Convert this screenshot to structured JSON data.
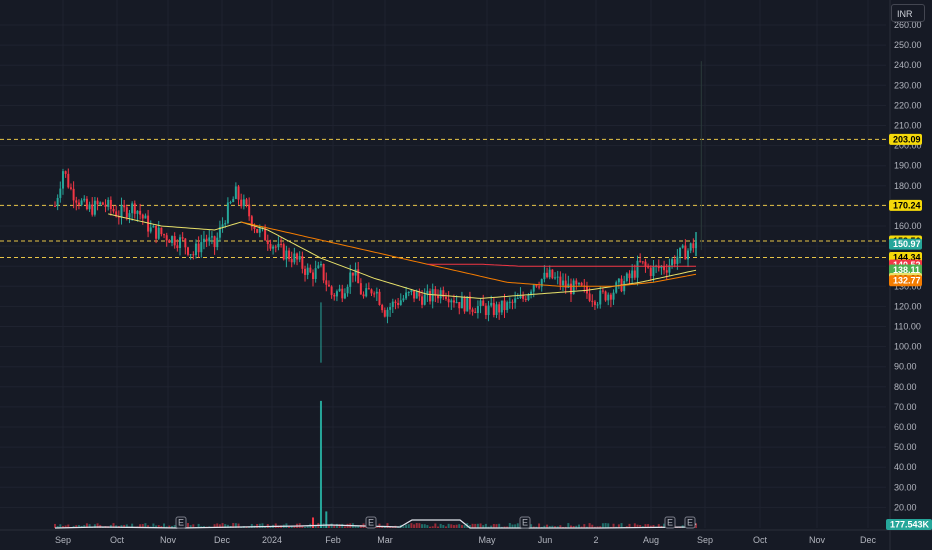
{
  "currency_label": "INR",
  "chart_data": {
    "type": "candlestick",
    "y_axis": {
      "ticks": [
        "260.00",
        "250.00",
        "240.00",
        "230.00",
        "220.00",
        "210.00",
        "200.00",
        "190.00",
        "180.00",
        "170.00",
        "160.00",
        "150.00",
        "140.00",
        "130.00",
        "120.00",
        "110.00",
        "100.00",
        "90.00",
        "80.00",
        "70.00",
        "60.00",
        "50.00",
        "40.00",
        "30.00",
        "20.00"
      ],
      "range": [
        10,
        265
      ]
    },
    "x_axis": {
      "labels": [
        "Sep",
        "Oct",
        "Nov",
        "Dec",
        "2024",
        "Feb",
        "Mar",
        "May",
        "Jun",
        "2",
        "Aug",
        "Sep",
        "Oct",
        "Nov",
        "Dec"
      ]
    },
    "horizontal_levels": [
      203.09,
      170.24,
      152.56,
      144.34
    ],
    "price_tags": [
      {
        "label": "203.09",
        "value": 203.09,
        "bg": "#f5d90a",
        "fg": "#000000"
      },
      {
        "label": "170.24",
        "value": 170.24,
        "bg": "#f5d90a",
        "fg": "#000000"
      },
      {
        "label": "152.56",
        "value": 152.56,
        "bg": "#f5d90a",
        "fg": "#000000"
      },
      {
        "label": "150.97",
        "value": 150.97,
        "bg": "#26a69a",
        "fg": "#ffffff"
      },
      {
        "label": "144.34",
        "value": 144.34,
        "bg": "#f5d90a",
        "fg": "#000000"
      },
      {
        "label": "140.52",
        "value": 140.52,
        "bg": "#f23645",
        "fg": "#ffffff"
      },
      {
        "label": "138.11",
        "value": 138.11,
        "bg": "#4caf50",
        "fg": "#ffffff"
      },
      {
        "label": "133.89",
        "value": 133.89,
        "bg": "#e9e26a",
        "fg": "#000000"
      },
      {
        "label": "132.77",
        "value": 132.77,
        "bg": "#f57c00",
        "fg": "#ffffff"
      }
    ],
    "volume_tag": {
      "label": "177.543K",
      "bg": "#26a69a",
      "fg": "#ffffff"
    },
    "earnings_markers": [
      "E",
      "E",
      "E",
      "E",
      "E"
    ],
    "price_keyframes": [
      [
        0,
        170
      ],
      [
        3,
        188
      ],
      [
        6,
        178
      ],
      [
        12,
        168
      ],
      [
        18,
        171
      ],
      [
        24,
        166
      ],
      [
        30,
        170
      ],
      [
        36,
        158
      ],
      [
        42,
        155
      ],
      [
        48,
        152
      ],
      [
        52,
        146
      ],
      [
        56,
        154
      ],
      [
        60,
        150
      ],
      [
        64,
        165
      ],
      [
        68,
        176
      ],
      [
        72,
        168
      ],
      [
        76,
        158
      ],
      [
        80,
        154
      ],
      [
        84,
        148
      ],
      [
        90,
        144
      ],
      [
        96,
        136
      ],
      [
        100,
        138
      ],
      [
        104,
        126
      ],
      [
        108,
        128
      ],
      [
        112,
        138
      ],
      [
        116,
        124
      ],
      [
        120,
        130
      ],
      [
        124,
        118
      ],
      [
        128,
        122
      ],
      [
        134,
        126
      ],
      [
        140,
        124
      ],
      [
        146,
        128
      ],
      [
        152,
        122
      ],
      [
        158,
        120
      ],
      [
        164,
        118
      ],
      [
        170,
        120
      ],
      [
        176,
        124
      ],
      [
        180,
        132
      ],
      [
        186,
        135
      ],
      [
        192,
        130
      ],
      [
        198,
        128
      ],
      [
        204,
        124
      ],
      [
        210,
        128
      ],
      [
        216,
        134
      ],
      [
        220,
        141
      ],
      [
        224,
        138
      ],
      [
        230,
        140
      ],
      [
        234,
        145
      ],
      [
        238,
        148
      ],
      [
        241,
        152
      ]
    ],
    "ma_lines": [
      {
        "color": "#e9e26a",
        "start": 20,
        "points": [
          [
            20,
            166
          ],
          [
            40,
            160
          ],
          [
            60,
            158
          ],
          [
            70,
            162
          ],
          [
            80,
            158
          ],
          [
            100,
            144
          ],
          [
            120,
            134
          ],
          [
            140,
            126
          ],
          [
            160,
            124
          ],
          [
            180,
            126
          ],
          [
            200,
            128
          ],
          [
            220,
            132
          ],
          [
            241,
            138
          ]
        ]
      },
      {
        "color": "#f57c00",
        "start": 70,
        "points": [
          [
            70,
            162
          ],
          [
            90,
            156
          ],
          [
            110,
            150
          ],
          [
            130,
            144
          ],
          [
            150,
            138
          ],
          [
            170,
            132
          ],
          [
            190,
            130
          ],
          [
            210,
            130
          ],
          [
            225,
            132
          ],
          [
            241,
            136
          ]
        ]
      },
      {
        "color": "#f23645",
        "start": 140,
        "points": [
          [
            140,
            141
          ],
          [
            160,
            141
          ],
          [
            175,
            140
          ],
          [
            190,
            140
          ],
          [
            205,
            140
          ],
          [
            220,
            140
          ],
          [
            241,
            140
          ]
        ]
      }
    ],
    "volume_spike": {
      "index": 100,
      "value": 73
    }
  }
}
